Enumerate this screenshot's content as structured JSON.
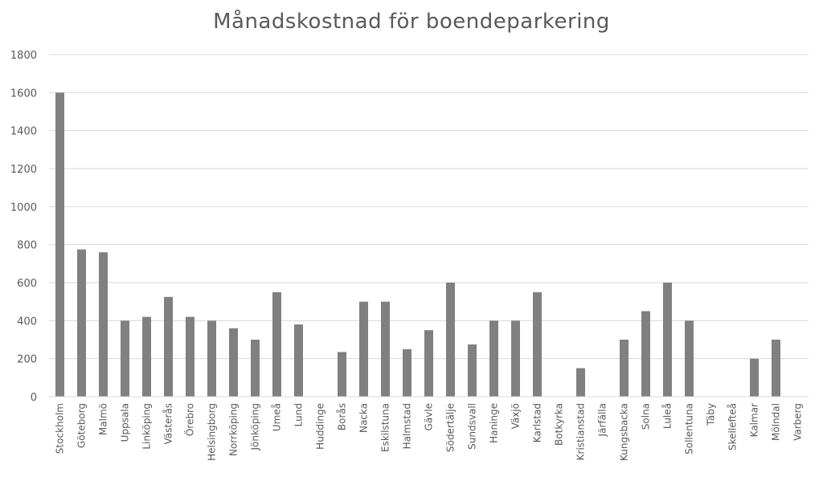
{
  "chart_data": {
    "type": "bar",
    "title": "Månadskostnad för boendeparkering",
    "xlabel": "",
    "ylabel": "",
    "ylim": [
      0,
      1800
    ],
    "yticks": [
      0,
      200,
      400,
      600,
      800,
      1000,
      1200,
      1400,
      1600,
      1800
    ],
    "grid": true,
    "bar_color": "#808080",
    "grid_color": "#d9d9d9",
    "text_color": "#595959",
    "categories": [
      "Stockholm",
      "Göteborg",
      "Malmö",
      "Uppsala",
      "Linköping",
      "Västerås",
      "Örebro",
      "Helsingborg",
      "Norrköping",
      "Jönköping",
      "Umeå",
      "Lund",
      "Huddinge",
      "Borås",
      "Nacka",
      "Eskilstuna",
      "Halmstad",
      "Gävle",
      "Södertälje",
      "Sundsvall",
      "Haninge",
      "Växjö",
      "Karlstad",
      "Botkyrka",
      "Kristianstad",
      "Järfälla",
      "Kungsbacka",
      "Solna",
      "Luleå",
      "Sollentuna",
      "Täby",
      "Skellefteå",
      "Kalmar",
      "Mölndal",
      "Varberg"
    ],
    "values": [
      1600,
      775,
      760,
      400,
      420,
      525,
      420,
      400,
      360,
      300,
      550,
      380,
      0,
      235,
      500,
      500,
      250,
      350,
      600,
      275,
      400,
      400,
      550,
      0,
      150,
      0,
      300,
      450,
      600,
      400,
      0,
      0,
      200,
      300,
      0
    ]
  }
}
